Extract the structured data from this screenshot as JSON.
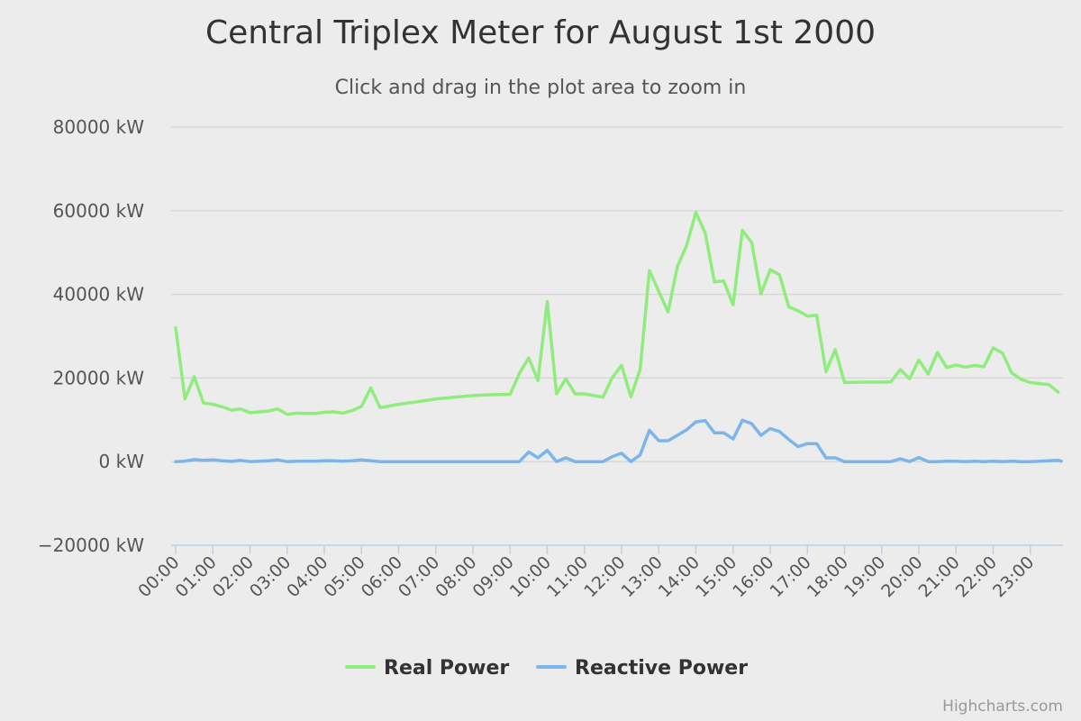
{
  "chart_data": {
    "type": "line",
    "title": "Central Triplex Meter for August 1st 2000",
    "subtitle": "Click and drag in the plot area to zoom in",
    "xlabel": "",
    "ylabel": "",
    "y_unit": "kW",
    "ylim": [
      -20000,
      80000
    ],
    "yticks": [
      -20000,
      0,
      20000,
      40000,
      60000,
      80000
    ],
    "y_tick_labels": [
      "−20000 kW",
      "0 kW",
      "20000 kW",
      "40000 kW",
      "60000 kW",
      "80000 kW"
    ],
    "x_unit": "hours",
    "xlim": [
      0,
      23.833
    ],
    "xticks": [
      0,
      1,
      2,
      3,
      4,
      5,
      6,
      7,
      8,
      9,
      10,
      11,
      12,
      13,
      14,
      15,
      16,
      17,
      18,
      19,
      20,
      21,
      22,
      23
    ],
    "x_tick_labels": [
      "00:00",
      "01:00",
      "02:00",
      "03:00",
      "04:00",
      "05:00",
      "06:00",
      "07:00",
      "08:00",
      "09:00",
      "10:00",
      "11:00",
      "12:00",
      "13:00",
      "14:00",
      "15:00",
      "16:00",
      "17:00",
      "18:00",
      "19:00",
      "20:00",
      "21:00",
      "22:00",
      "23:00"
    ],
    "grid": true,
    "legend_position": "bottom-center",
    "series": [
      {
        "name": "Real Power",
        "color": "#90ed7d",
        "points": [
          [
            0,
            32000
          ],
          [
            0.25,
            15000
          ],
          [
            0.5,
            20300
          ],
          [
            0.75,
            14000
          ],
          [
            1,
            13700
          ],
          [
            1.25,
            13100
          ],
          [
            1.5,
            12300
          ],
          [
            1.75,
            12600
          ],
          [
            2,
            11700
          ],
          [
            2.25,
            11900
          ],
          [
            2.5,
            12100
          ],
          [
            2.75,
            12600
          ],
          [
            3,
            11300
          ],
          [
            3.25,
            11600
          ],
          [
            3.5,
            11500
          ],
          [
            3.75,
            11500
          ],
          [
            4,
            11800
          ],
          [
            4.25,
            11900
          ],
          [
            4.5,
            11600
          ],
          [
            4.75,
            12200
          ],
          [
            5,
            13200
          ],
          [
            5.25,
            17600
          ],
          [
            5.5,
            12900
          ],
          [
            5.75,
            13300
          ],
          [
            6,
            13700
          ],
          [
            6.5,
            14300
          ],
          [
            7,
            15000
          ],
          [
            7.5,
            15400
          ],
          [
            8,
            15800
          ],
          [
            8.5,
            16000
          ],
          [
            9,
            16100
          ],
          [
            9.25,
            21100
          ],
          [
            9.5,
            24800
          ],
          [
            9.75,
            19400
          ],
          [
            10,
            38300
          ],
          [
            10.25,
            16200
          ],
          [
            10.5,
            19800
          ],
          [
            10.75,
            16200
          ],
          [
            11,
            16200
          ],
          [
            11.5,
            15400
          ],
          [
            11.75,
            20100
          ],
          [
            12,
            23000
          ],
          [
            12.25,
            15500
          ],
          [
            12.5,
            22000
          ],
          [
            12.75,
            45700
          ],
          [
            13,
            40700
          ],
          [
            13.25,
            35800
          ],
          [
            13.5,
            46600
          ],
          [
            13.75,
            51700
          ],
          [
            14,
            59600
          ],
          [
            14.25,
            54700
          ],
          [
            14.5,
            43000
          ],
          [
            14.75,
            43200
          ],
          [
            15,
            37500
          ],
          [
            15.25,
            55300
          ],
          [
            15.5,
            52400
          ],
          [
            15.75,
            40100
          ],
          [
            16,
            45900
          ],
          [
            16.25,
            44700
          ],
          [
            16.5,
            37000
          ],
          [
            16.75,
            36100
          ],
          [
            17,
            34800
          ],
          [
            17.25,
            35000
          ],
          [
            17.5,
            21500
          ],
          [
            17.75,
            26800
          ],
          [
            18,
            18900
          ],
          [
            18.5,
            19000
          ],
          [
            19,
            19000
          ],
          [
            19.25,
            19100
          ],
          [
            19.5,
            22000
          ],
          [
            19.75,
            19800
          ],
          [
            20,
            24300
          ],
          [
            20.25,
            20900
          ],
          [
            20.5,
            26100
          ],
          [
            20.75,
            22500
          ],
          [
            21,
            23100
          ],
          [
            21.25,
            22600
          ],
          [
            21.5,
            23000
          ],
          [
            21.75,
            22700
          ],
          [
            22,
            27200
          ],
          [
            22.25,
            26000
          ],
          [
            22.5,
            21200
          ],
          [
            22.75,
            19700
          ],
          [
            23,
            18900
          ],
          [
            23.5,
            18400
          ],
          [
            23.75,
            16600
          ]
        ]
      },
      {
        "name": "Reactive Power",
        "color": "#7cb5ec",
        "points": [
          [
            0,
            0
          ],
          [
            0.25,
            100
          ],
          [
            0.5,
            500
          ],
          [
            0.75,
            300
          ],
          [
            1,
            400
          ],
          [
            1.25,
            200
          ],
          [
            1.5,
            50
          ],
          [
            1.75,
            300
          ],
          [
            2,
            0
          ],
          [
            2.25,
            100
          ],
          [
            2.5,
            200
          ],
          [
            2.75,
            400
          ],
          [
            3,
            0
          ],
          [
            3.25,
            100
          ],
          [
            3.5,
            100
          ],
          [
            3.75,
            100
          ],
          [
            4,
            200
          ],
          [
            4.25,
            200
          ],
          [
            4.5,
            100
          ],
          [
            4.75,
            200
          ],
          [
            5,
            400
          ],
          [
            5.25,
            200
          ],
          [
            5.5,
            0
          ],
          [
            6,
            0
          ],
          [
            7,
            0
          ],
          [
            8,
            0
          ],
          [
            9,
            0
          ],
          [
            9.25,
            0
          ],
          [
            9.5,
            2300
          ],
          [
            9.75,
            900
          ],
          [
            10,
            2700
          ],
          [
            10.25,
            0
          ],
          [
            10.5,
            900
          ],
          [
            10.75,
            0
          ],
          [
            11,
            0
          ],
          [
            11.5,
            0
          ],
          [
            11.75,
            1200
          ],
          [
            12,
            2000
          ],
          [
            12.25,
            0
          ],
          [
            12.5,
            1600
          ],
          [
            12.75,
            7500
          ],
          [
            13,
            5000
          ],
          [
            13.25,
            5000
          ],
          [
            13.5,
            6300
          ],
          [
            13.75,
            7600
          ],
          [
            14,
            9500
          ],
          [
            14.25,
            9800
          ],
          [
            14.5,
            6900
          ],
          [
            14.75,
            6900
          ],
          [
            15,
            5400
          ],
          [
            15.25,
            9900
          ],
          [
            15.5,
            9100
          ],
          [
            15.75,
            6300
          ],
          [
            16,
            7900
          ],
          [
            16.25,
            7200
          ],
          [
            16.5,
            5300
          ],
          [
            16.75,
            3600
          ],
          [
            17,
            4300
          ],
          [
            17.25,
            4300
          ],
          [
            17.5,
            900
          ],
          [
            17.75,
            900
          ],
          [
            18,
            0
          ],
          [
            18.5,
            0
          ],
          [
            19,
            0
          ],
          [
            19.25,
            0
          ],
          [
            19.5,
            700
          ],
          [
            19.75,
            0
          ],
          [
            20,
            1000
          ],
          [
            20.25,
            0
          ],
          [
            20.5,
            0
          ],
          [
            20.75,
            100
          ],
          [
            21,
            100
          ],
          [
            21.25,
            0
          ],
          [
            21.5,
            100
          ],
          [
            21.75,
            0
          ],
          [
            22,
            100
          ],
          [
            22.25,
            0
          ],
          [
            22.5,
            100
          ],
          [
            22.75,
            0
          ],
          [
            23,
            0
          ],
          [
            23.5,
            200
          ],
          [
            23.75,
            300
          ],
          [
            23.833,
            100
          ]
        ]
      }
    ],
    "credits": "Highcharts.com"
  }
}
